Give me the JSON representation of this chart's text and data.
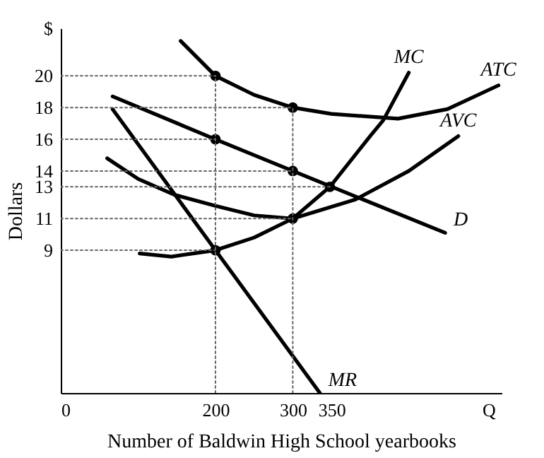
{
  "chart_data": {
    "type": "line",
    "xlabel": "Number of Baldwin High School yearbooks",
    "ylabel": "Dollars",
    "xlim": [
      0,
      570
    ],
    "ylim": [
      0,
      23
    ],
    "xticks": [
      0,
      200,
      300,
      350,
      {
        "value": 553,
        "label": "Q"
      }
    ],
    "yticks": [
      9,
      11,
      13,
      14,
      16,
      18,
      20,
      {
        "value": 23,
        "label": "$"
      }
    ],
    "grid": false,
    "line_style": "solid",
    "series": [
      {
        "name": "MC",
        "color": "#000000",
        "x": [
          102,
          143,
          200,
          250,
          300,
          348,
          400,
          417,
          450
        ],
        "values": [
          8.8,
          8.6,
          9,
          9.8,
          11,
          13,
          16.2,
          17.2,
          20.2
        ]
      },
      {
        "name": "ATC",
        "color": "#000000",
        "x": [
          155,
          200,
          250,
          300,
          350,
          436,
          500,
          566
        ],
        "values": [
          22.2,
          20,
          18.8,
          18,
          17.6,
          17.3,
          17.9,
          19.4
        ]
      },
      {
        "name": "AVC",
        "color": "#000000",
        "x": [
          60,
          100,
          147,
          200,
          250,
          300,
          381,
          450,
          514
        ],
        "values": [
          14.8,
          13.5,
          12.5,
          11.8,
          11.2,
          11,
          12.2,
          14,
          16.2
        ]
      },
      {
        "name": "D",
        "color": "#000000",
        "x": [
          67,
          200,
          300,
          497
        ],
        "values": [
          18.7,
          16,
          14,
          10.1
        ]
      },
      {
        "name": "MR",
        "color": "#000000",
        "x": [
          67,
          200,
          335
        ],
        "values": [
          17.9,
          9,
          0
        ]
      },
      {
        "type": "scatter",
        "marker": "circle",
        "color": "#000000",
        "x": [
          200,
          300,
          200,
          300,
          300,
          200,
          348
        ],
        "values": [
          20,
          18,
          16,
          14,
          11,
          9,
          13
        ]
      },
      {
        "line_style": "dotted",
        "color": "#666666",
        "x": [
          0,
          200
        ],
        "values": [
          20,
          20
        ]
      },
      {
        "line_style": "dotted",
        "color": "#666666",
        "x": [
          0,
          300
        ],
        "values": [
          18,
          18
        ]
      },
      {
        "line_style": "dotted",
        "color": "#666666",
        "x": [
          0,
          200
        ],
        "values": [
          16,
          16
        ]
      },
      {
        "line_style": "dotted",
        "color": "#666666",
        "x": [
          0,
          300
        ],
        "values": [
          14,
          14
        ]
      },
      {
        "line_style": "dotted",
        "color": "#666666",
        "x": [
          0,
          348
        ],
        "values": [
          13,
          13
        ]
      },
      {
        "line_style": "dotted",
        "color": "#666666",
        "x": [
          0,
          300
        ],
        "values": [
          11,
          11
        ]
      },
      {
        "line_style": "dotted",
        "color": "#666666",
        "x": [
          0,
          200
        ],
        "values": [
          9,
          9
        ]
      },
      {
        "line_style": "dotted",
        "color": "#666666",
        "x": [
          200,
          200
        ],
        "values": [
          0,
          20
        ]
      },
      {
        "line_style": "dotted",
        "color": "#666666",
        "x": [
          300,
          300
        ],
        "values": [
          0,
          18
        ]
      }
    ]
  }
}
